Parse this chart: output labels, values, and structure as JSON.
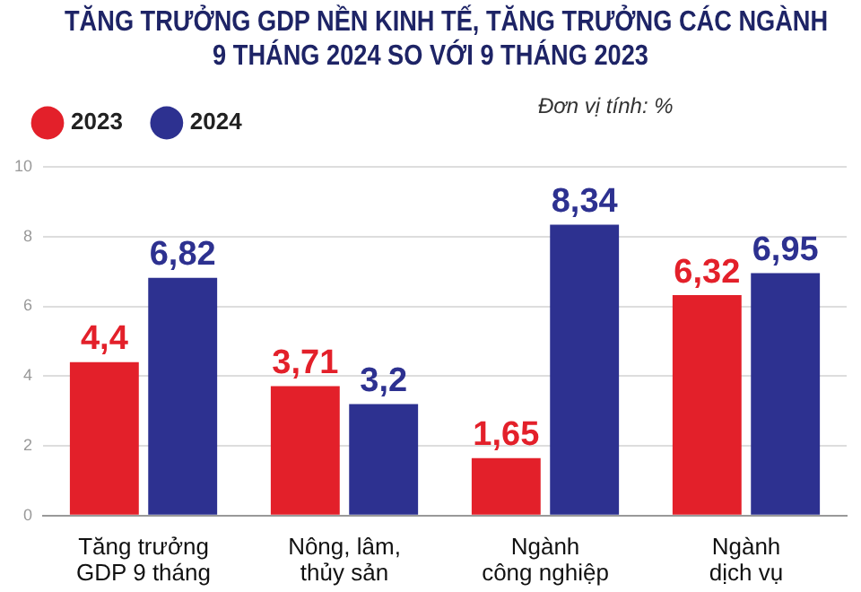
{
  "chart_data": {
    "type": "bar",
    "title": "TĂNG TRƯỞNG GDP NỀN KINH TẾ, TĂNG TRƯỞNG CÁC NGÀNH\n9 THÁNG 2024 SO VỚI 9 THÁNG 2023",
    "categories": [
      "Tăng trưởng\nGDP 9 tháng",
      "Nông, lâm,\nthủy sản",
      "Ngành\ncông nghiệp",
      "Ngành\ndịch vụ"
    ],
    "series": [
      {
        "name": "2023",
        "color": "#e3202a",
        "values": [
          4.4,
          3.71,
          1.65,
          6.32
        ],
        "value_labels": [
          "4,4",
          "3,71",
          "1,65",
          "6,32"
        ]
      },
      {
        "name": "2024",
        "color": "#2d3190",
        "values": [
          6.82,
          3.2,
          8.34,
          6.95
        ],
        "value_labels": [
          "6,82",
          "3,2",
          "8,34",
          "6,95"
        ]
      }
    ],
    "ylim": [
      0,
      10
    ],
    "yticks": [
      0,
      2,
      4,
      6,
      8,
      10
    ],
    "grid": "y",
    "legend": "top",
    "annotations": [
      "Đơn vị tính: %"
    ]
  }
}
